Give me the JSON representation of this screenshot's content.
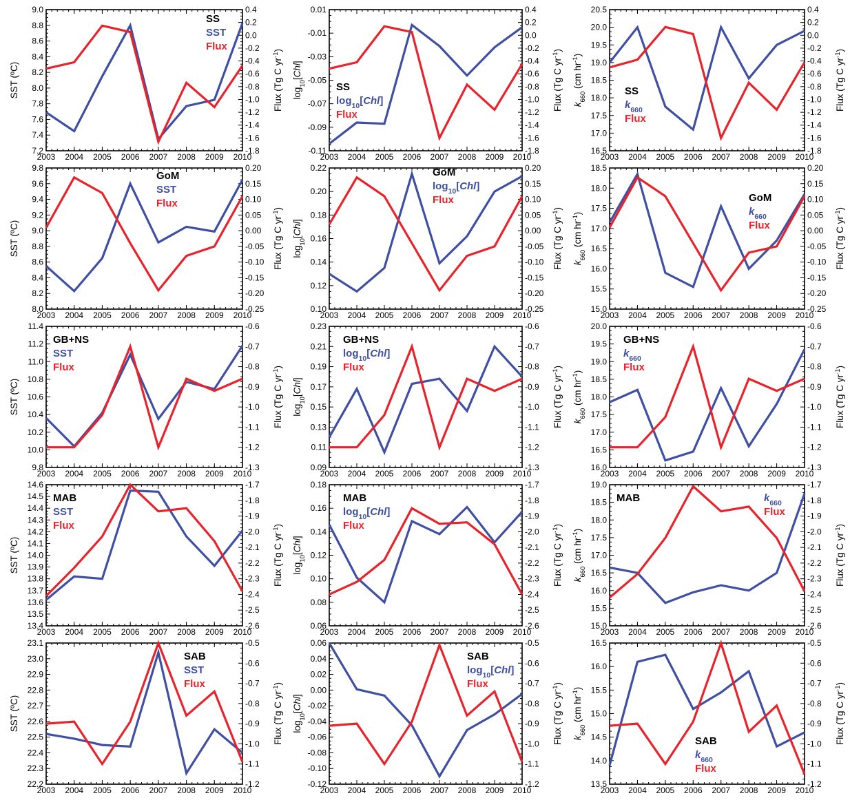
{
  "colors": {
    "blue": "#3f4fa3",
    "red": "#e8232b",
    "axis": "#000000"
  },
  "row_labels": [
    "SS",
    "GoM",
    "GB+NS",
    "MAB",
    "SAB"
  ],
  "col_vars": [
    "SST",
    "log10[Chl]",
    "k660"
  ],
  "axis_labels": {
    "sst": "SST (ºC)",
    "chl": "log10[Chl]",
    "k660": "k660 (cm hr-1)",
    "flux": "Flux (Tg C yr-1)",
    "legend_flux": "Flux"
  },
  "x_ticks": [
    "2003",
    "2004",
    "2005",
    "2006",
    "2007",
    "2008",
    "2009",
    "2010"
  ],
  "y_axes": {
    "SS": {
      "sst": [
        7.2,
        9.0,
        0.2,
        1
      ],
      "chl": [
        -0.11,
        0.01,
        0.02,
        2
      ],
      "k660": [
        16.5,
        20.5,
        0.5,
        1
      ],
      "flux": [
        -1.8,
        0.4,
        0.2,
        1
      ]
    },
    "GoM": {
      "sst": [
        8.0,
        9.8,
        0.2,
        1
      ],
      "chl": [
        0.1,
        0.22,
        0.02,
        2
      ],
      "k660": [
        15.0,
        18.5,
        0.5,
        1
      ],
      "flux": [
        -0.25,
        0.2,
        0.05,
        2
      ]
    },
    "GB+NS": {
      "sst": [
        9.8,
        11.4,
        0.2,
        1
      ],
      "chl": [
        0.09,
        0.23,
        0.02,
        2
      ],
      "k660": [
        16.0,
        20.0,
        0.5,
        1
      ],
      "flux": [
        -1.3,
        -0.6,
        0.1,
        1
      ]
    },
    "MAB": {
      "sst": [
        13.4,
        14.6,
        0.1,
        1
      ],
      "chl": [
        0.06,
        0.18,
        0.02,
        2
      ],
      "k660": [
        15.0,
        19.0,
        0.5,
        1
      ],
      "flux": [
        -2.6,
        -1.7,
        0.1,
        1
      ]
    },
    "SAB": {
      "sst": [
        22.2,
        23.1,
        0.1,
        1
      ],
      "chl": [
        -0.12,
        0.06,
        0.02,
        2
      ],
      "k660": [
        13.5,
        16.5,
        0.5,
        1
      ],
      "flux": [
        -1.2,
        -0.5,
        0.1,
        1
      ]
    }
  },
  "chart_data": [
    {
      "region": "SS",
      "var": "SST",
      "type": "line",
      "x": [
        2003,
        2004,
        2005,
        2006,
        2007,
        2008,
        2009,
        2010
      ],
      "series": [
        {
          "name": "SST",
          "axis": "left",
          "values": [
            7.69,
            7.45,
            8.15,
            8.8,
            7.35,
            7.77,
            7.85,
            8.83
          ]
        },
        {
          "name": "Flux",
          "axis": "right",
          "values": [
            -0.52,
            -0.42,
            0.15,
            0.05,
            -1.66,
            -0.74,
            -1.12,
            -0.47
          ]
        }
      ]
    },
    {
      "region": "SS",
      "var": "log10[Chl]",
      "type": "line",
      "x": [
        2003,
        2004,
        2005,
        2006,
        2007,
        2008,
        2009,
        2010
      ],
      "series": [
        {
          "name": "log10[Chl]",
          "axis": "left",
          "values": [
            -0.104,
            -0.086,
            -0.087,
            -0.003,
            -0.021,
            -0.046,
            -0.022,
            -0.005
          ]
        },
        {
          "name": "Flux",
          "axis": "right",
          "values": [
            -0.52,
            -0.42,
            0.14,
            0.05,
            -1.6,
            -0.77,
            -1.16,
            -0.45
          ]
        }
      ]
    },
    {
      "region": "SS",
      "var": "k660",
      "type": "line",
      "x": [
        2003,
        2004,
        2005,
        2006,
        2007,
        2008,
        2009,
        2010
      ],
      "series": [
        {
          "name": "k660",
          "axis": "left",
          "values": [
            19.0,
            20.0,
            17.75,
            17.1,
            20.0,
            18.55,
            19.5,
            19.9
          ]
        },
        {
          "name": "Flux",
          "axis": "right",
          "values": [
            -0.5,
            -0.38,
            0.13,
            0.02,
            -1.6,
            -0.74,
            -1.16,
            -0.42
          ]
        }
      ]
    },
    {
      "region": "GoM",
      "var": "SST",
      "type": "line",
      "x": [
        2003,
        2004,
        2005,
        2006,
        2007,
        2008,
        2009,
        2010
      ],
      "series": [
        {
          "name": "SST",
          "axis": "left",
          "values": [
            8.55,
            8.23,
            8.65,
            9.6,
            8.85,
            9.05,
            8.99,
            9.65
          ]
        },
        {
          "name": "Flux",
          "axis": "right",
          "values": [
            0.01,
            0.17,
            0.12,
            -0.04,
            -0.19,
            -0.08,
            -0.05,
            0.11
          ]
        }
      ]
    },
    {
      "region": "GoM",
      "var": "log10[Chl]",
      "type": "line",
      "x": [
        2003,
        2004,
        2005,
        2006,
        2007,
        2008,
        2009,
        2010
      ],
      "series": [
        {
          "name": "log10[Chl]",
          "axis": "left",
          "values": [
            0.13,
            0.115,
            0.135,
            0.215,
            0.139,
            0.162,
            0.2,
            0.213
          ]
        },
        {
          "name": "Flux",
          "axis": "right",
          "values": [
            0.02,
            0.17,
            0.11,
            -0.04,
            -0.19,
            -0.08,
            -0.05,
            0.11
          ]
        }
      ]
    },
    {
      "region": "GoM",
      "var": "k660",
      "type": "line",
      "x": [
        2003,
        2004,
        2005,
        2006,
        2007,
        2008,
        2009,
        2010
      ],
      "series": [
        {
          "name": "k660",
          "axis": "left",
          "values": [
            17.15,
            18.35,
            15.9,
            15.55,
            17.55,
            16.0,
            16.7,
            17.85
          ]
        },
        {
          "name": "Flux",
          "axis": "right",
          "values": [
            0.01,
            0.17,
            0.11,
            -0.04,
            -0.19,
            -0.07,
            -0.05,
            0.11
          ]
        }
      ]
    },
    {
      "region": "GB+NS",
      "var": "SST",
      "type": "line",
      "x": [
        2003,
        2004,
        2005,
        2006,
        2007,
        2008,
        2009,
        2010
      ],
      "series": [
        {
          "name": "SST",
          "axis": "left",
          "values": [
            10.36,
            10.04,
            10.42,
            11.08,
            10.35,
            10.77,
            10.69,
            11.18
          ]
        },
        {
          "name": "Flux",
          "axis": "right",
          "values": [
            -1.2,
            -1.2,
            -1.04,
            -0.7,
            -1.2,
            -0.86,
            -0.92,
            -0.86
          ]
        }
      ]
    },
    {
      "region": "GB+NS",
      "var": "log10[Chl]",
      "type": "line",
      "x": [
        2003,
        2004,
        2005,
        2006,
        2007,
        2008,
        2009,
        2010
      ],
      "series": [
        {
          "name": "log10[Chl]",
          "axis": "left",
          "values": [
            0.12,
            0.168,
            0.105,
            0.173,
            0.178,
            0.146,
            0.21,
            0.18
          ]
        },
        {
          "name": "Flux",
          "axis": "right",
          "values": [
            -1.2,
            -1.2,
            -1.04,
            -0.7,
            -1.2,
            -0.86,
            -0.92,
            -0.86
          ]
        }
      ]
    },
    {
      "region": "GB+NS",
      "var": "k660",
      "type": "line",
      "x": [
        2003,
        2004,
        2005,
        2006,
        2007,
        2008,
        2009,
        2010
      ],
      "series": [
        {
          "name": "k660",
          "axis": "left",
          "values": [
            17.85,
            18.2,
            16.2,
            16.45,
            18.25,
            16.6,
            17.8,
            19.35
          ]
        },
        {
          "name": "Flux",
          "axis": "right",
          "values": [
            -1.2,
            -1.2,
            -1.05,
            -0.7,
            -1.2,
            -0.86,
            -0.92,
            -0.86
          ]
        }
      ]
    },
    {
      "region": "MAB",
      "var": "SST",
      "type": "line",
      "x": [
        2003,
        2004,
        2005,
        2006,
        2007,
        2008,
        2009,
        2010
      ],
      "series": [
        {
          "name": "SST",
          "axis": "left",
          "values": [
            13.62,
            13.82,
            13.8,
            14.55,
            14.54,
            14.16,
            13.91,
            14.21
          ]
        },
        {
          "name": "Flux",
          "axis": "right",
          "values": [
            -2.41,
            -2.23,
            -2.03,
            -1.7,
            -1.87,
            -1.85,
            -2.06,
            -2.38
          ]
        }
      ]
    },
    {
      "region": "MAB",
      "var": "log10[Chl]",
      "type": "line",
      "x": [
        2003,
        2004,
        2005,
        2006,
        2007,
        2008,
        2009,
        2010
      ],
      "series": [
        {
          "name": "log10[Chl]",
          "axis": "left",
          "values": [
            0.146,
            0.101,
            0.08,
            0.149,
            0.138,
            0.161,
            0.131,
            0.157
          ]
        },
        {
          "name": "Flux",
          "axis": "right",
          "values": [
            -2.4,
            -2.32,
            -2.18,
            -1.85,
            -1.95,
            -1.94,
            -2.08,
            -2.4
          ]
        }
      ]
    },
    {
      "region": "MAB",
      "var": "k660",
      "type": "line",
      "x": [
        2003,
        2004,
        2005,
        2006,
        2007,
        2008,
        2009,
        2010
      ],
      "series": [
        {
          "name": "k660",
          "axis": "left",
          "values": [
            16.65,
            16.5,
            15.65,
            15.95,
            16.15,
            16.0,
            16.5,
            18.75
          ]
        },
        {
          "name": "Flux",
          "axis": "right",
          "values": [
            -2.42,
            -2.27,
            -2.04,
            -1.71,
            -1.87,
            -1.84,
            -2.04,
            -2.38
          ]
        }
      ]
    },
    {
      "region": "SAB",
      "var": "SST",
      "type": "line",
      "x": [
        2003,
        2004,
        2005,
        2006,
        2007,
        2008,
        2009,
        2010
      ],
      "series": [
        {
          "name": "SST",
          "axis": "left",
          "values": [
            22.52,
            22.49,
            22.45,
            22.44,
            23.04,
            22.27,
            22.55,
            22.4
          ]
        },
        {
          "name": "Flux",
          "axis": "right",
          "values": [
            -0.9,
            -0.89,
            -1.1,
            -0.89,
            -0.5,
            -0.86,
            -0.74,
            -1.09
          ]
        }
      ]
    },
    {
      "region": "SAB",
      "var": "log10[Chl]",
      "type": "line",
      "x": [
        2003,
        2004,
        2005,
        2006,
        2007,
        2008,
        2009,
        2010
      ],
      "series": [
        {
          "name": "log10[Chl]",
          "axis": "left",
          "values": [
            0.06,
            0.001,
            -0.007,
            -0.045,
            -0.11,
            -0.051,
            -0.031,
            -0.005
          ]
        },
        {
          "name": "Flux",
          "axis": "right",
          "values": [
            -0.91,
            -0.9,
            -1.1,
            -0.89,
            -0.51,
            -0.86,
            -0.74,
            -1.09
          ]
        }
      ]
    },
    {
      "region": "SAB",
      "var": "k660",
      "type": "line",
      "x": [
        2003,
        2004,
        2005,
        2006,
        2007,
        2008,
        2009,
        2010
      ],
      "series": [
        {
          "name": "k660",
          "axis": "left",
          "values": [
            13.9,
            16.1,
            16.25,
            15.1,
            15.45,
            15.9,
            14.3,
            14.6
          ]
        },
        {
          "name": "Flux",
          "axis": "right",
          "values": [
            -0.91,
            -0.9,
            -1.1,
            -0.89,
            -0.5,
            -0.94,
            -0.81,
            -1.15
          ]
        }
      ]
    }
  ]
}
